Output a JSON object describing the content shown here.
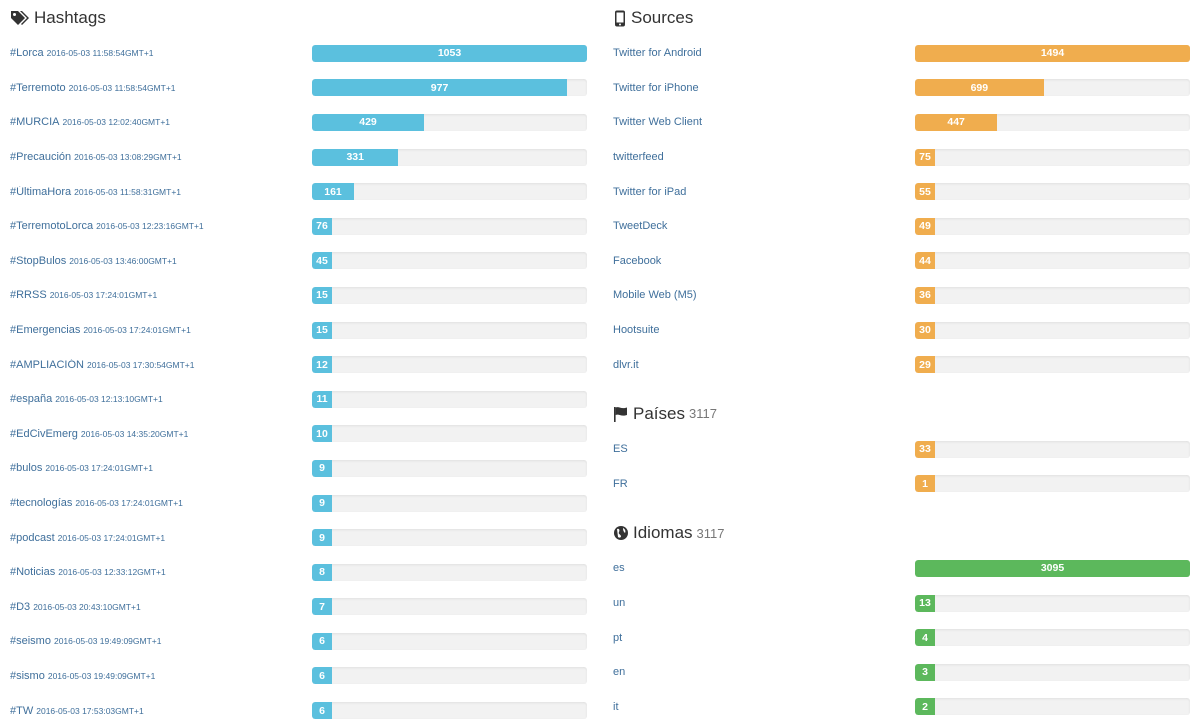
{
  "hashtags": {
    "title": "Hashtags",
    "icon": "tags-icon",
    "color": "#5bc0de",
    "items": [
      {
        "tag": "#Lorca",
        "ts": "2016-05-03 11:58:54GMT+1",
        "count": 1053
      },
      {
        "tag": "#Terremoto",
        "ts": "2016-05-03 11:58:54GMT+1",
        "count": 977
      },
      {
        "tag": "#MURCIA",
        "ts": "2016-05-03 12:02:40GMT+1",
        "count": 429
      },
      {
        "tag": "#Precaución",
        "ts": "2016-05-03 13:08:29GMT+1",
        "count": 331
      },
      {
        "tag": "#ÚltimaHora",
        "ts": "2016-05-03 11:58:31GMT+1",
        "count": 161
      },
      {
        "tag": "#TerremotoLorca",
        "ts": "2016-05-03 12:23:16GMT+1",
        "count": 76
      },
      {
        "tag": "#StopBulos",
        "ts": "2016-05-03 13:46:00GMT+1",
        "count": 45
      },
      {
        "tag": "#RRSS",
        "ts": "2016-05-03 17:24:01GMT+1",
        "count": 15
      },
      {
        "tag": "#Emergencias",
        "ts": "2016-05-03 17:24:01GMT+1",
        "count": 15
      },
      {
        "tag": "#AMPLIACIÓN",
        "ts": "2016-05-03 17:30:54GMT+1",
        "count": 12
      },
      {
        "tag": "#españa",
        "ts": "2016-05-03 12:13:10GMT+1",
        "count": 11
      },
      {
        "tag": "#EdCivEmerg",
        "ts": "2016-05-03 14:35:20GMT+1",
        "count": 10
      },
      {
        "tag": "#bulos",
        "ts": "2016-05-03 17:24:01GMT+1",
        "count": 9
      },
      {
        "tag": "#tecnologías",
        "ts": "2016-05-03 17:24:01GMT+1",
        "count": 9
      },
      {
        "tag": "#podcast",
        "ts": "2016-05-03 17:24:01GMT+1",
        "count": 9
      },
      {
        "tag": "#Noticias",
        "ts": "2016-05-03 12:33:12GMT+1",
        "count": 8
      },
      {
        "tag": "#D3",
        "ts": "2016-05-03 20:43:10GMT+1",
        "count": 7
      },
      {
        "tag": "#seismo",
        "ts": "2016-05-03 19:49:09GMT+1",
        "count": 6
      },
      {
        "tag": "#sismo",
        "ts": "2016-05-03 19:49:09GMT+1",
        "count": 6
      },
      {
        "tag": "#TW",
        "ts": "2016-05-03 17:53:03GMT+1",
        "count": 6
      }
    ]
  },
  "sources": {
    "title": "Sources",
    "icon": "mobile-phone-icon",
    "color": "#f0ad4e",
    "items": [
      {
        "name": "Twitter for Android",
        "count": 1494
      },
      {
        "name": "Twitter for iPhone",
        "count": 699
      },
      {
        "name": "Twitter Web Client",
        "count": 447
      },
      {
        "name": "twitterfeed",
        "count": 75
      },
      {
        "name": "Twitter for iPad",
        "count": 55
      },
      {
        "name": "TweetDeck",
        "count": 49
      },
      {
        "name": "Facebook",
        "count": 44
      },
      {
        "name": "Mobile Web (M5)",
        "count": 36
      },
      {
        "name": "Hootsuite",
        "count": 30
      },
      {
        "name": "dlvr.it",
        "count": 29
      }
    ]
  },
  "paises": {
    "title": "Países",
    "total": "3117",
    "icon": "flag-icon",
    "color": "#f0ad4e",
    "items": [
      {
        "name": "ES",
        "count": 33
      },
      {
        "name": "FR",
        "count": 1
      }
    ]
  },
  "idiomas": {
    "title": "Idiomas",
    "total": "3117",
    "icon": "globe-icon",
    "color": "#5cb85c",
    "items": [
      {
        "name": "es",
        "count": 3095
      },
      {
        "name": "un",
        "count": 13
      },
      {
        "name": "pt",
        "count": 4
      },
      {
        "name": "en",
        "count": 3
      },
      {
        "name": "it",
        "count": 2
      }
    ]
  }
}
